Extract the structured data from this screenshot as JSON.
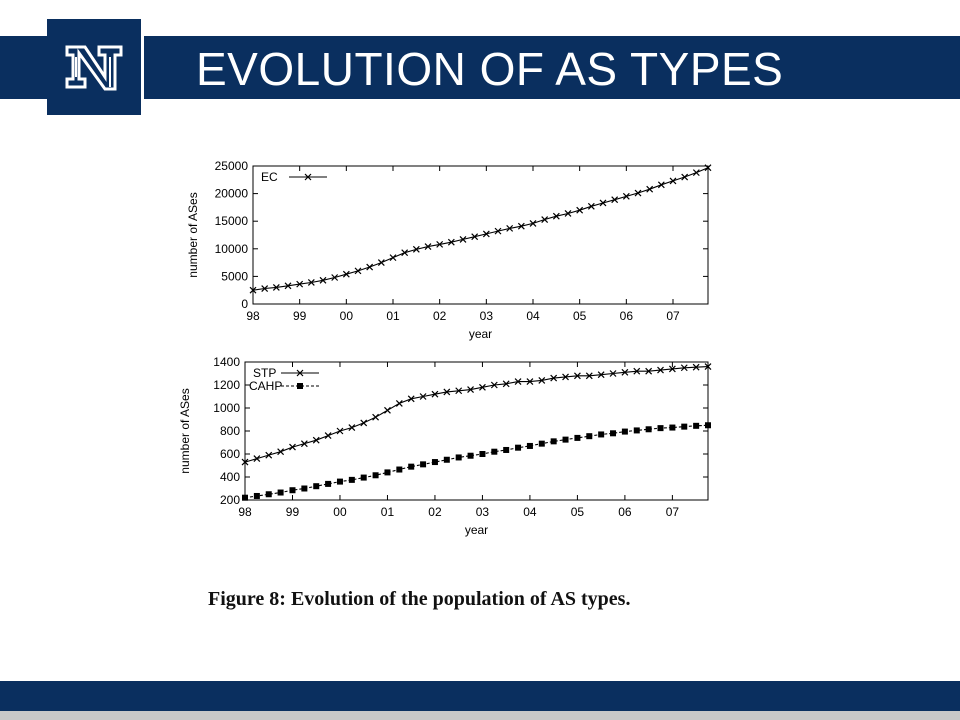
{
  "slide": {
    "title": "EVOLUTION OF AS TYPES",
    "caption": "Figure 8: Evolution of the population of AS types.",
    "logo_icon": "university-n-logo-icon",
    "colors": {
      "navy": "#0a2f5f",
      "footer_strip": "#c8c8c8"
    }
  },
  "chart_data": [
    {
      "type": "line",
      "title": "",
      "xlabel": "year",
      "ylabel": "number of ASes",
      "xlim": [
        1998,
        2007.75
      ],
      "ylim": [
        0,
        25000
      ],
      "x_ticks": [
        1998,
        1999,
        2000,
        2001,
        2002,
        2003,
        2004,
        2005,
        2006,
        2007
      ],
      "x_tick_labels": [
        "98",
        "99",
        "00",
        "01",
        "02",
        "03",
        "04",
        "05",
        "06",
        "07"
      ],
      "y_ticks": [
        0,
        5000,
        10000,
        15000,
        20000,
        25000
      ],
      "y_tick_labels": [
        "0",
        "5000",
        "10000",
        "15000",
        "20000",
        "25000"
      ],
      "grid": false,
      "legend_position": "top-left",
      "series": [
        {
          "name": "EC",
          "marker": "x",
          "line": "solid",
          "x": [
            1998.0,
            1998.25,
            1998.5,
            1998.75,
            1999.0,
            1999.25,
            1999.5,
            1999.75,
            2000.0,
            2000.25,
            2000.5,
            2000.75,
            2001.0,
            2001.25,
            2001.5,
            2001.75,
            2002.0,
            2002.25,
            2002.5,
            2002.75,
            2003.0,
            2003.25,
            2003.5,
            2003.75,
            2004.0,
            2004.25,
            2004.5,
            2004.75,
            2005.0,
            2005.25,
            2005.5,
            2005.75,
            2006.0,
            2006.25,
            2006.5,
            2006.75,
            2007.0,
            2007.25,
            2007.5,
            2007.75
          ],
          "values": [
            2500,
            2800,
            3000,
            3300,
            3600,
            3900,
            4300,
            4800,
            5400,
            6000,
            6700,
            7500,
            8400,
            9300,
            9900,
            10400,
            10800,
            11200,
            11700,
            12200,
            12700,
            13200,
            13700,
            14100,
            14600,
            15300,
            15900,
            16400,
            17000,
            17700,
            18300,
            18900,
            19500,
            20100,
            20800,
            21600,
            22300,
            23000,
            23800,
            24700
          ]
        }
      ]
    },
    {
      "type": "line",
      "title": "",
      "xlabel": "year",
      "ylabel": "number of ASes",
      "xlim": [
        1998,
        2007.75
      ],
      "ylim": [
        200,
        1400
      ],
      "x_ticks": [
        1998,
        1999,
        2000,
        2001,
        2002,
        2003,
        2004,
        2005,
        2006,
        2007
      ],
      "x_tick_labels": [
        "98",
        "99",
        "00",
        "01",
        "02",
        "03",
        "04",
        "05",
        "06",
        "07"
      ],
      "y_ticks": [
        200,
        400,
        600,
        800,
        1000,
        1200,
        1400
      ],
      "y_tick_labels": [
        "200",
        "400",
        "600",
        "800",
        "1000",
        "1200",
        "1400"
      ],
      "grid": false,
      "legend_position": "top-left",
      "series": [
        {
          "name": "STP",
          "marker": "x",
          "line": "solid",
          "x": [
            1998.0,
            1998.25,
            1998.5,
            1998.75,
            1999.0,
            1999.25,
            1999.5,
            1999.75,
            2000.0,
            2000.25,
            2000.5,
            2000.75,
            2001.0,
            2001.25,
            2001.5,
            2001.75,
            2002.0,
            2002.25,
            2002.5,
            2002.75,
            2003.0,
            2003.25,
            2003.5,
            2003.75,
            2004.0,
            2004.25,
            2004.5,
            2004.75,
            2005.0,
            2005.25,
            2005.5,
            2005.75,
            2006.0,
            2006.25,
            2006.5,
            2006.75,
            2007.0,
            2007.25,
            2007.5,
            2007.75
          ],
          "values": [
            530,
            560,
            590,
            620,
            660,
            690,
            720,
            760,
            800,
            830,
            870,
            920,
            980,
            1040,
            1080,
            1100,
            1120,
            1140,
            1150,
            1160,
            1180,
            1200,
            1210,
            1230,
            1230,
            1240,
            1260,
            1270,
            1280,
            1280,
            1290,
            1300,
            1310,
            1320,
            1320,
            1330,
            1340,
            1350,
            1355,
            1360
          ]
        },
        {
          "name": "CAHP",
          "marker": "filled-square",
          "line": "dashed",
          "x": [
            1998.0,
            1998.25,
            1998.5,
            1998.75,
            1999.0,
            1999.25,
            1999.5,
            1999.75,
            2000.0,
            2000.25,
            2000.5,
            2000.75,
            2001.0,
            2001.25,
            2001.5,
            2001.75,
            2002.0,
            2002.25,
            2002.5,
            2002.75,
            2003.0,
            2003.25,
            2003.5,
            2003.75,
            2004.0,
            2004.25,
            2004.5,
            2004.75,
            2005.0,
            2005.25,
            2005.5,
            2005.75,
            2006.0,
            2006.25,
            2006.5,
            2006.75,
            2007.0,
            2007.25,
            2007.5,
            2007.75
          ],
          "values": [
            220,
            235,
            250,
            265,
            285,
            300,
            320,
            340,
            360,
            375,
            395,
            415,
            440,
            465,
            490,
            510,
            530,
            550,
            570,
            585,
            600,
            620,
            635,
            655,
            670,
            690,
            710,
            725,
            740,
            755,
            770,
            780,
            795,
            805,
            815,
            825,
            830,
            838,
            845,
            850
          ]
        }
      ]
    }
  ]
}
